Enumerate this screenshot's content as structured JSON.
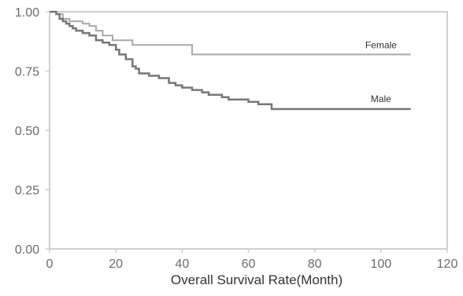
{
  "chart_data": {
    "type": "line",
    "title": "",
    "xlabel": "Overall Survival Rate(Month)",
    "ylabel": "",
    "xlim": [
      0,
      120
    ],
    "ylim": [
      0,
      1.0
    ],
    "xticks": [
      "0",
      "20",
      "40",
      "60",
      "80",
      "100",
      "120"
    ],
    "yticks": [
      "0.00",
      "0.25",
      "0.50",
      "0.75",
      "1.00"
    ],
    "grid": false,
    "legend": "inline labels",
    "series": [
      {
        "name": "Female",
        "color": "#a9a9a9",
        "x": [
          0,
          2,
          4,
          6,
          10,
          12,
          14,
          16,
          19,
          20,
          25,
          43,
          109
        ],
        "y": [
          1.0,
          0.99,
          0.97,
          0.96,
          0.95,
          0.94,
          0.92,
          0.9,
          0.88,
          0.88,
          0.86,
          0.82,
          0.82
        ]
      },
      {
        "name": "Male",
        "color": "#777777",
        "x": [
          0,
          2,
          3,
          4,
          5,
          6,
          7,
          8,
          10,
          12,
          14,
          16,
          18,
          20,
          21,
          23,
          25,
          26,
          27,
          30,
          33,
          36,
          38,
          40,
          43,
          46,
          48,
          52,
          54,
          60,
          63,
          67,
          109
        ],
        "y": [
          1.0,
          0.99,
          0.97,
          0.96,
          0.95,
          0.94,
          0.93,
          0.92,
          0.91,
          0.9,
          0.88,
          0.87,
          0.86,
          0.84,
          0.82,
          0.8,
          0.77,
          0.76,
          0.74,
          0.73,
          0.72,
          0.7,
          0.69,
          0.68,
          0.67,
          0.66,
          0.65,
          0.64,
          0.63,
          0.62,
          0.61,
          0.59,
          0.59
        ]
      }
    ]
  }
}
